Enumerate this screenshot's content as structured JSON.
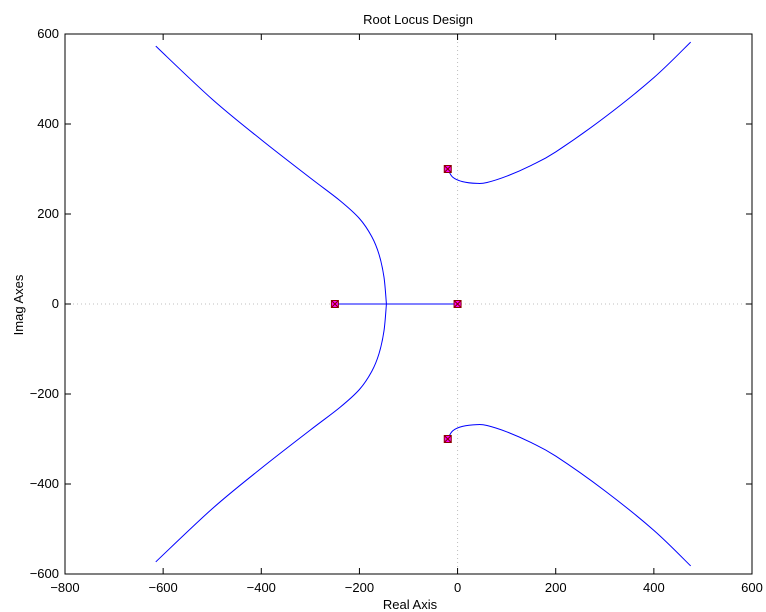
{
  "chart_data": {
    "type": "line",
    "title": "Root Locus Design",
    "xlabel": "Real Axis",
    "ylabel": "Imag Axes",
    "xlim": [
      -800,
      600
    ],
    "ylim": [
      -600,
      600
    ],
    "x_ticks": [
      -800,
      -600,
      -400,
      -200,
      0,
      200,
      400,
      600
    ],
    "y_ticks": [
      -600,
      -400,
      -200,
      0,
      200,
      400,
      600
    ],
    "grid": false,
    "zero_lines": "dotted",
    "colors": {
      "locus": "#0000ff",
      "pole_fill": "#ff00ff",
      "pole_edge": "#8b0000",
      "axes": "#000000",
      "zero_line": "#bfbfbf"
    },
    "poles": [
      {
        "x": -250,
        "y": 0
      },
      {
        "x": 0,
        "y": 0
      },
      {
        "x": -20,
        "y": 300
      },
      {
        "x": -20,
        "y": -300
      }
    ],
    "series": [
      {
        "points": [
          [
            -250,
            0
          ],
          [
            -145,
            0
          ],
          [
            0,
            0
          ]
        ]
      },
      {
        "points": [
          [
            -145,
            0
          ],
          [
            -150,
            60
          ],
          [
            -160,
            110
          ],
          [
            -175,
            150
          ],
          [
            -200,
            190
          ],
          [
            -240,
            230
          ],
          [
            -300,
            280
          ],
          [
            -400,
            365
          ],
          [
            -500,
            455
          ],
          [
            -615,
            573
          ]
        ]
      },
      {
        "points": [
          [
            -145,
            0
          ],
          [
            -150,
            -60
          ],
          [
            -160,
            -110
          ],
          [
            -175,
            -150
          ],
          [
            -200,
            -190
          ],
          [
            -240,
            -230
          ],
          [
            -300,
            -280
          ],
          [
            -400,
            -365
          ],
          [
            -500,
            -455
          ],
          [
            -615,
            -573
          ]
        ]
      },
      {
        "points": [
          [
            -20,
            300
          ],
          [
            -10,
            282
          ],
          [
            10,
            272
          ],
          [
            40,
            268
          ],
          [
            60,
            270
          ],
          [
            100,
            284
          ],
          [
            150,
            308
          ],
          [
            200,
            338
          ],
          [
            300,
            415
          ],
          [
            400,
            503
          ],
          [
            475,
            582
          ]
        ]
      },
      {
        "points": [
          [
            -20,
            -300
          ],
          [
            -10,
            -282
          ],
          [
            10,
            -272
          ],
          [
            40,
            -268
          ],
          [
            60,
            -270
          ],
          [
            100,
            -284
          ],
          [
            150,
            -308
          ],
          [
            200,
            -338
          ],
          [
            300,
            -415
          ],
          [
            400,
            -503
          ],
          [
            475,
            -582
          ]
        ]
      }
    ]
  }
}
